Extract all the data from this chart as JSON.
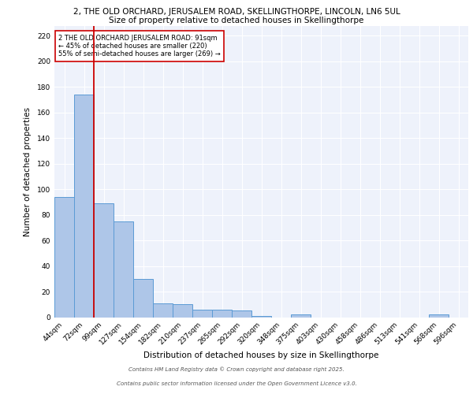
{
  "title_line1": "2, THE OLD ORCHARD, JERUSALEM ROAD, SKELLINGTHORPE, LINCOLN, LN6 5UL",
  "title_line2": "Size of property relative to detached houses in Skellingthorpe",
  "xlabel": "Distribution of detached houses by size in Skellingthorpe",
  "ylabel": "Number of detached properties",
  "categories": [
    "44sqm",
    "72sqm",
    "99sqm",
    "127sqm",
    "154sqm",
    "182sqm",
    "210sqm",
    "237sqm",
    "265sqm",
    "292sqm",
    "320sqm",
    "348sqm",
    "375sqm",
    "403sqm",
    "430sqm",
    "458sqm",
    "486sqm",
    "513sqm",
    "541sqm",
    "568sqm",
    "596sqm"
  ],
  "values": [
    94,
    174,
    89,
    75,
    30,
    11,
    10,
    6,
    6,
    5,
    1,
    0,
    2,
    0,
    0,
    0,
    0,
    0,
    0,
    2,
    0
  ],
  "bar_color": "#aec6e8",
  "bar_edge_color": "#5b9bd5",
  "red_line_x": 1.5,
  "red_line_color": "#cc0000",
  "annotation_text": "2 THE OLD ORCHARD JERUSALEM ROAD: 91sqm\n← 45% of detached houses are smaller (220)\n55% of semi-detached houses are larger (269) →",
  "annotation_box_color": "#ffffff",
  "annotation_box_edge": "#cc0000",
  "ylim": [
    0,
    228
  ],
  "yticks": [
    0,
    20,
    40,
    60,
    80,
    100,
    120,
    140,
    160,
    180,
    200,
    220
  ],
  "footer_line1": "Contains HM Land Registry data © Crown copyright and database right 2025.",
  "footer_line2": "Contains public sector information licensed under the Open Government Licence v3.0.",
  "bg_color": "#eef2fb",
  "grid_color": "#ffffff",
  "title1_fontsize": 7.5,
  "title2_fontsize": 7.5,
  "xlabel_fontsize": 7.5,
  "ylabel_fontsize": 7.5,
  "tick_fontsize": 6.5,
  "annot_fontsize": 6.0,
  "footer_fontsize": 5.0
}
